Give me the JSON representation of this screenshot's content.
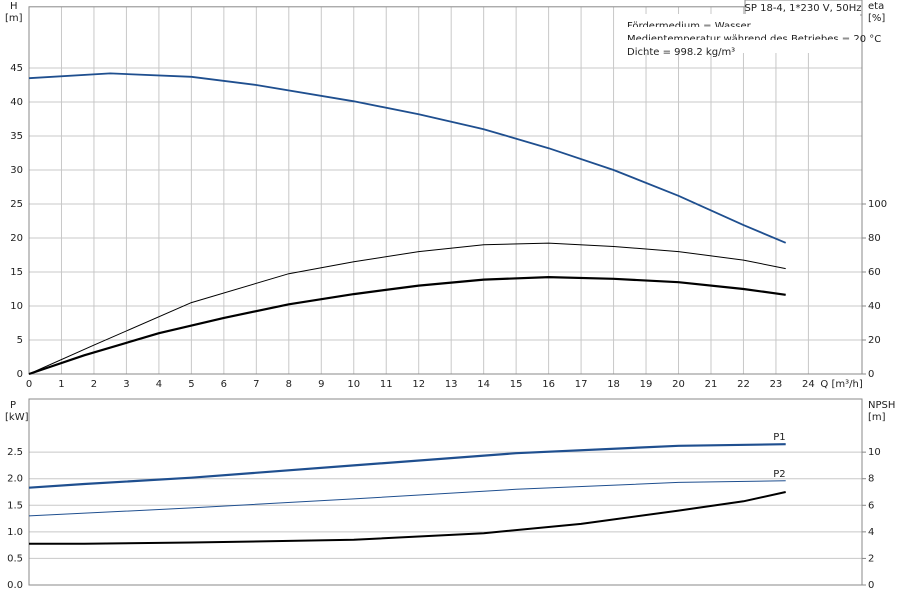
{
  "chart_data": [
    {
      "type": "line",
      "title": "SP 18-4, 1*230 V, 50Hz",
      "annotations": [
        "Fördermedium = Wasser",
        "Medientemperatur während des Betriebes = 20 °C",
        "Dichte = 998.2 kg/m³"
      ],
      "ylabel": "H",
      "yunit": "[m]",
      "y2label": "eta",
      "y2unit": "[%]",
      "xlabel": "Q [m³/h]",
      "xlim": [
        0,
        25.65
      ],
      "xticks": [
        0,
        1,
        2,
        3,
        4,
        5,
        6,
        7,
        8,
        9,
        10,
        11,
        12,
        13,
        14,
        15,
        16,
        17,
        18,
        19,
        20,
        21,
        22,
        23,
        24
      ],
      "ylim": [
        0,
        54
      ],
      "yticks": [
        0,
        5,
        10,
        15,
        20,
        25,
        30,
        35,
        40,
        45
      ],
      "y2lim": [
        0,
        216
      ],
      "y2ticks": [
        0,
        20,
        40,
        60,
        80,
        100
      ],
      "grid": true,
      "series": [
        {
          "color": "#1f4f8f",
          "x": [
            0,
            2.5,
            5,
            7,
            10,
            12,
            14,
            16,
            18,
            20,
            22,
            23.3
          ],
          "values": [
            43.5,
            44.2,
            43.7,
            42.5,
            40.1,
            38.2,
            36,
            33.2,
            30,
            26.2,
            21.9,
            19.3
          ]
        },
        {
          "color": "#000000",
          "axis": "y2",
          "x": [
            0,
            2,
            5,
            8,
            10,
            12,
            14,
            16,
            18,
            20,
            22,
            23.3
          ],
          "values": [
            0,
            17,
            42,
            59,
            66,
            72,
            76,
            77,
            75,
            72,
            67,
            62
          ]
        },
        {
          "color": "#000000",
          "axis": "y2",
          "x": [
            0,
            1.7,
            4,
            6,
            8,
            10,
            12,
            14,
            16,
            18,
            20,
            22,
            23.3
          ],
          "values": [
            0,
            11,
            24,
            33,
            41,
            47,
            52,
            55.5,
            57,
            56,
            54,
            50,
            46.6
          ]
        }
      ]
    },
    {
      "type": "line",
      "ylabel": "P",
      "yunit": "[kW]",
      "y2label": "NPSH",
      "y2unit": "[m]",
      "xlim": [
        0,
        25.65
      ],
      "ylim": [
        0,
        3.5
      ],
      "yticks": [
        {
          "value": 0,
          "label": "0.0"
        },
        {
          "value": 0.5,
          "label": "0.5"
        },
        {
          "value": 1,
          "label": "1.0"
        },
        {
          "value": 1.5,
          "label": "1.5"
        },
        {
          "value": 2,
          "label": "2.0"
        },
        {
          "value": 2.5,
          "label": "2.5"
        }
      ],
      "y2lim": [
        0,
        14
      ],
      "y2ticks": [
        0,
        2,
        4,
        6,
        8,
        10
      ],
      "grid": true,
      "series": [
        {
          "name": "P1",
          "color": "#1f4f8f",
          "x": [
            0,
            1.7,
            5,
            10,
            15,
            20,
            23.3
          ],
          "values": [
            1.83,
            1.9,
            2.02,
            2.25,
            2.48,
            2.62,
            2.65
          ]
        },
        {
          "name": "P2",
          "color": "#1f4f8f",
          "x": [
            0,
            5,
            10,
            15,
            20,
            23.3
          ],
          "values": [
            1.3,
            1.45,
            1.62,
            1.8,
            1.93,
            1.96
          ]
        },
        {
          "color": "#000000",
          "axis": "y2",
          "x": [
            0,
            1.7,
            5,
            10,
            14,
            17,
            20,
            22,
            23.3
          ],
          "values": [
            3.1,
            3.1,
            3.2,
            3.4,
            3.9,
            4.6,
            5.6,
            6.3,
            7.0
          ]
        }
      ]
    }
  ]
}
